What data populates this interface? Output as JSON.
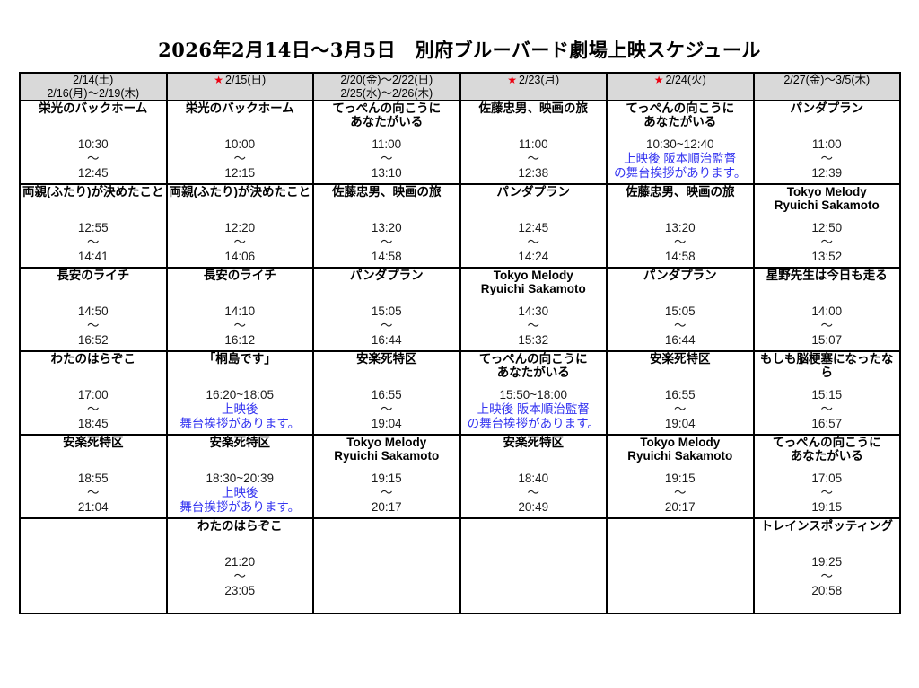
{
  "page": {
    "title": "2026年2月14日～3月5日　別府ブルーバード劇場上映スケジュール"
  },
  "symbols": {
    "star": "★",
    "tilde": "～"
  },
  "colors": {
    "header_bg": "#d9d9d9",
    "border": "#000000",
    "note_blue": "#3333f0",
    "star_red": "#ec0010",
    "text": "#000000"
  },
  "table": {
    "headers": [
      {
        "line1": "2/14(土)",
        "line2": "2/16(月)～2/19(木)",
        "star": false
      },
      {
        "line1": "2/15(日)",
        "star": true
      },
      {
        "line1": "2/20(金)～2/22(日)",
        "line2": "2/25(水)～2/26(木)",
        "star": false
      },
      {
        "line1": "2/23(月)",
        "star": true
      },
      {
        "line1": "2/24(火)",
        "star": true
      },
      {
        "line1": "2/27(金)～3/5(木)",
        "star": false
      }
    ],
    "rows": [
      [
        {
          "title": "栄光のバックホーム",
          "start": "10:30",
          "end": "12:45"
        },
        {
          "title": "栄光のバックホーム",
          "start": "10:00",
          "end": "12:15"
        },
        {
          "title": "てっぺんの向こうに",
          "title2": "あなたがいる",
          "start": "11:00",
          "end": "13:10"
        },
        {
          "title": "佐藤忠男、映画の旅",
          "start": "11:00",
          "end": "12:38"
        },
        {
          "title": "てっぺんの向こうに",
          "title2": "あなたがいる",
          "range": "10:30~12:40",
          "note1": "上映後 阪本順治監督",
          "note2": "の舞台挨拶があります。"
        },
        {
          "title": "パンダプラン",
          "start": "11:00",
          "end": "12:39"
        }
      ],
      [
        {
          "title": "両親(ふたり)が決めたこと",
          "start": "12:55",
          "end": "14:41"
        },
        {
          "title": "両親(ふたり)が決めたこと",
          "start": "12:20",
          "end": "14:06"
        },
        {
          "title": "佐藤忠男、映画の旅",
          "start": "13:20",
          "end": "14:58"
        },
        {
          "title": "パンダプラン",
          "start": "12:45",
          "end": "14:24"
        },
        {
          "title": "佐藤忠男、映画の旅",
          "start": "13:20",
          "end": "14:58"
        },
        {
          "title": "Tokyo Melody",
          "title2": "Ryuichi Sakamoto",
          "start": "12:50",
          "end": "13:52"
        }
      ],
      [
        {
          "title": "長安のライチ",
          "start": "14:50",
          "end": "16:52"
        },
        {
          "title": "長安のライチ",
          "start": "14:10",
          "end": "16:12"
        },
        {
          "title": "パンダプラン",
          "start": "15:05",
          "end": "16:44"
        },
        {
          "title": "Tokyo Melody",
          "title2": "Ryuichi Sakamoto",
          "start": "14:30",
          "end": "15:32"
        },
        {
          "title": "パンダプラン",
          "start": "15:05",
          "end": "16:44"
        },
        {
          "title": "星野先生は今日も走る",
          "start": "14:00",
          "end": "15:07"
        }
      ],
      [
        {
          "title": "わたのはらぞこ",
          "start": "17:00",
          "end": "18:45"
        },
        {
          "title": "「桐島です」",
          "range": "16:20~18:05",
          "note1": "上映後",
          "note2": "舞台挨拶があります。"
        },
        {
          "title": "安楽死特区",
          "start": "16:55",
          "end": "19:04"
        },
        {
          "title": "てっぺんの向こうに",
          "title2": "あなたがいる",
          "range": "15:50~18:00",
          "note1": "上映後 阪本順治監督",
          "note2": "の舞台挨拶があります。"
        },
        {
          "title": "安楽死特区",
          "start": "16:55",
          "end": "19:04"
        },
        {
          "title": "もしも脳梗塞になったなら",
          "start": "15:15",
          "end": "16:57"
        }
      ],
      [
        {
          "title": "安楽死特区",
          "start": "18:55",
          "end": "21:04"
        },
        {
          "title": "安楽死特区",
          "range": "18:30~20:39",
          "note1": "上映後",
          "note2": "舞台挨拶があります。"
        },
        {
          "title": "Tokyo Melody",
          "title2": "Ryuichi Sakamoto",
          "start": "19:15",
          "end": "20:17"
        },
        {
          "title": "安楽死特区",
          "start": "18:40",
          "end": "20:49"
        },
        {
          "title": "Tokyo Melody",
          "title2": "Ryuichi Sakamoto",
          "start": "19:15",
          "end": "20:17"
        },
        {
          "title": "てっぺんの向こうに",
          "title2": "あなたがいる",
          "start": "17:05",
          "end": "19:15"
        }
      ],
      [
        {},
        {
          "title": "わたのはらぞこ",
          "start": "21:20",
          "end": "23:05"
        },
        {},
        {},
        {},
        {
          "title": "トレインスポッティング",
          "start": "19:25",
          "end": "20:58"
        }
      ]
    ]
  }
}
